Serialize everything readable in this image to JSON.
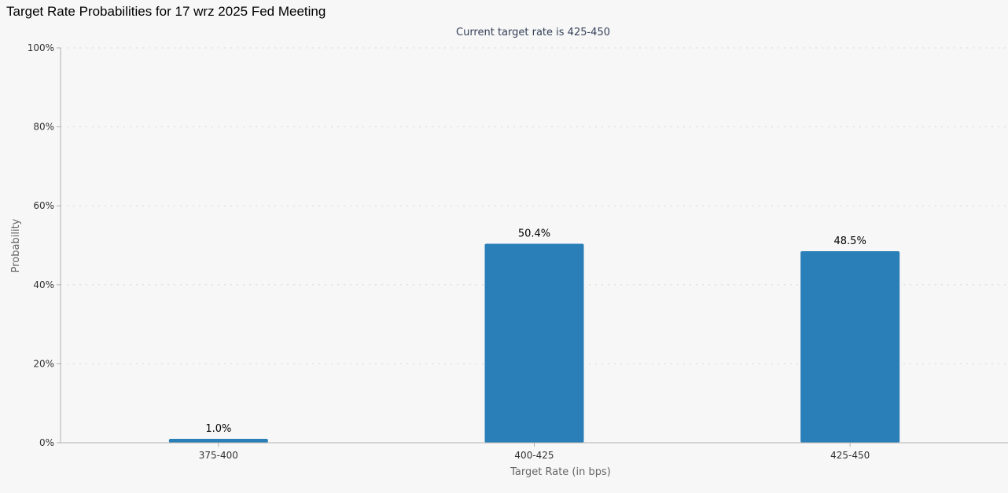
{
  "page_title": "Target Rate Probabilities for 17 wrz 2025 Fed Meeting",
  "chart_data": {
    "type": "bar",
    "subtitle": "Current target rate is 425-450",
    "xlabel": "Target Rate (in bps)",
    "ylabel": "Probability",
    "categories": [
      "375-400",
      "400-425",
      "425-450"
    ],
    "values": [
      1.0,
      50.4,
      48.5
    ],
    "data_labels": [
      "1.0%",
      "50.4%",
      "48.5%"
    ],
    "ylim": [
      0,
      100
    ],
    "yticks": [
      0,
      20,
      40,
      60,
      80,
      100
    ],
    "ytick_labels": [
      "0%",
      "20%",
      "40%",
      "60%",
      "80%",
      "100%"
    ],
    "grid": true,
    "legend": "none",
    "bar_color": "#2a7fb8"
  }
}
